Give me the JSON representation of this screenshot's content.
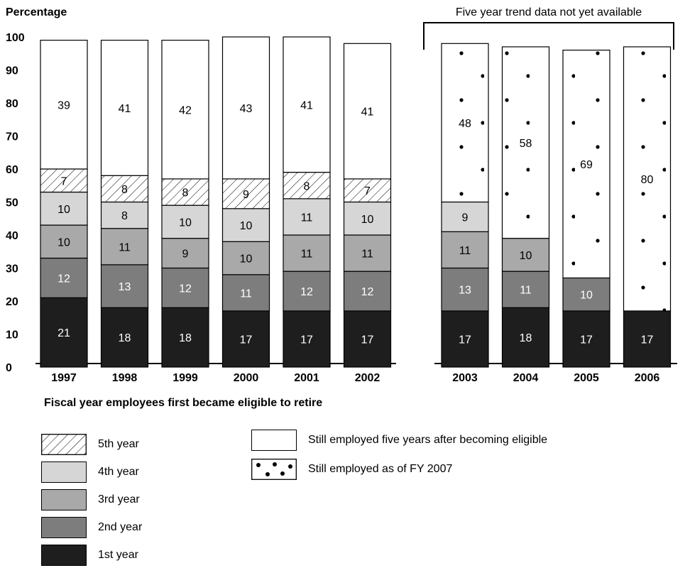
{
  "chart_data": {
    "type": "bar",
    "stacked": true,
    "ylabel": "Percentage",
    "xlabel": "Fiscal year employees first became eligible to retire",
    "ylim": [
      0,
      100
    ],
    "yticks": [
      0,
      10,
      20,
      30,
      40,
      50,
      60,
      70,
      80,
      90,
      100
    ],
    "annotation": "Five year trend data not yet available",
    "groups": [
      {
        "categories": [
          "1997",
          "1998",
          "1999",
          "2000",
          "2001",
          "2002"
        ]
      },
      {
        "categories": [
          "2003",
          "2004",
          "2005",
          "2006"
        ]
      }
    ],
    "series": [
      {
        "name": "1st year",
        "color": "#1e1e1e",
        "label_color": "#ffffff",
        "values": {
          "1997": 21,
          "1998": 18,
          "1999": 18,
          "2000": 17,
          "2001": 17,
          "2002": 17,
          "2003": 17,
          "2004": 18,
          "2005": 17,
          "2006": 17
        }
      },
      {
        "name": "2nd year",
        "color": "#7d7d7d",
        "label_color": "#ffffff",
        "values": {
          "1997": 12,
          "1998": 13,
          "1999": 12,
          "2000": 11,
          "2001": 12,
          "2002": 12,
          "2003": 13,
          "2004": 11,
          "2005": 10
        }
      },
      {
        "name": "3rd year",
        "color": "#a9a9a9",
        "label_color": "#000000",
        "values": {
          "1997": 10,
          "1998": 11,
          "1999": 9,
          "2000": 10,
          "2001": 11,
          "2002": 11,
          "2003": 11,
          "2004": 10
        }
      },
      {
        "name": "4th year",
        "color": "#d6d6d6",
        "label_color": "#000000",
        "values": {
          "1997": 10,
          "1998": 8,
          "1999": 10,
          "2000": 10,
          "2001": 11,
          "2002": 10,
          "2003": 9
        }
      },
      {
        "name": "5th year",
        "color": "#ffffff",
        "pattern": "hatch",
        "label_color": "#000000",
        "values": {
          "1997": 7,
          "1998": 8,
          "1999": 8,
          "2000": 9,
          "2001": 8,
          "2002": 7
        }
      },
      {
        "name": "Still employed five years after becoming eligible",
        "color": "#ffffff",
        "label_color": "#000000",
        "values": {
          "1997": 39,
          "1998": 41,
          "1999": 42,
          "2000": 43,
          "2001": 41,
          "2002": 41
        }
      },
      {
        "name": "Still employed as of FY 2007",
        "color": "#ffffff",
        "pattern": "dots",
        "label_color": "#000000",
        "values": {
          "2003": 48,
          "2004": 58,
          "2005": 69,
          "2006": 80
        }
      }
    ],
    "legend": {
      "column1": [
        "5th year",
        "4th year",
        "3rd year",
        "2nd year",
        "1st year"
      ],
      "column2": [
        "Still employed five years after becoming eligible",
        "Still employed as of FY 2007"
      ]
    }
  }
}
